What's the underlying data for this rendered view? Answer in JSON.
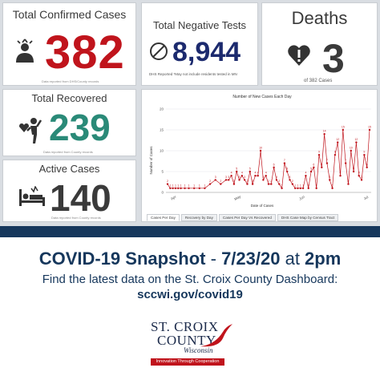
{
  "tiles": {
    "confirmed": {
      "title": "Total Confirmed Cases",
      "value": "382",
      "footnote": "Data reported from DHS/County records"
    },
    "negative": {
      "title": "Total Negative Tests",
      "value": "8,944",
      "note": "DHS Reported *May not include residents tested in MN"
    },
    "deaths": {
      "title": "Deaths",
      "value": "3",
      "note": "of 382 Cases"
    },
    "recovered": {
      "title": "Total Recovered",
      "value": "239",
      "footnote": "Data reported from County records"
    },
    "active": {
      "title": "Active Cases",
      "value": "140",
      "footnote": "Data reported from County records"
    }
  },
  "chart_data": {
    "type": "line",
    "title": "Number of New Cases Each Day",
    "xlabel": "Date of Cases",
    "ylabel": "Number of Cases",
    "ylim": [
      0,
      20
    ],
    "y_ticks": [
      0,
      5,
      10,
      15,
      20
    ],
    "x_tick_labels": [
      "Apr",
      "May",
      "Jun",
      "Jul"
    ],
    "grid": true,
    "color": "#c0141c",
    "x_day": [
      0,
      2,
      4,
      6,
      8,
      10,
      13,
      16,
      20,
      24,
      28,
      32,
      36,
      40,
      44,
      46,
      48,
      50,
      52,
      54,
      56,
      58,
      60,
      62,
      64,
      66,
      68,
      70,
      72,
      74,
      76,
      78,
      80,
      82,
      84,
      86,
      88,
      90,
      92,
      94,
      96,
      98,
      100,
      102,
      104,
      106,
      108,
      110,
      112,
      114,
      116,
      118,
      120,
      122,
      124,
      126,
      128,
      130,
      132,
      134,
      136,
      138,
      140,
      142,
      144,
      146,
      148,
      150,
      152
    ],
    "values": [
      2,
      1,
      1,
      1,
      1,
      1,
      1,
      1,
      1,
      1,
      1,
      2,
      3,
      2,
      3,
      3,
      4,
      2,
      5,
      3,
      4,
      3,
      2,
      5,
      2,
      4,
      4,
      10,
      3,
      4,
      2,
      2,
      6,
      3,
      2,
      1,
      7,
      5,
      3,
      2,
      1,
      1,
      1,
      1,
      4,
      1,
      5,
      6,
      1,
      9,
      6,
      14,
      7,
      3,
      1,
      9,
      12,
      4,
      15,
      7,
      2,
      10,
      5,
      12,
      4,
      3,
      9,
      6,
      15
    ]
  },
  "chart_tabs": [
    "Cases Per Day",
    "Recovery by Day",
    "Cases Per Day Vs Recovered",
    "DHS Case Map by Census Tract"
  ],
  "banner": {
    "title_bold": "COVID-19 Snapshot",
    "title_sep": " - ",
    "date": "7/23/20",
    "title_at": " at ",
    "time": "2pm",
    "subtitle": "Find the latest data on the St. Croix County Dashboard:",
    "url": "sccwi.gov/covid19"
  },
  "logo": {
    "line1": "ST. CROIX",
    "line2": "COUNTY",
    "state": "Wisconsin",
    "tagline": "Innovation Through Cooperation"
  }
}
